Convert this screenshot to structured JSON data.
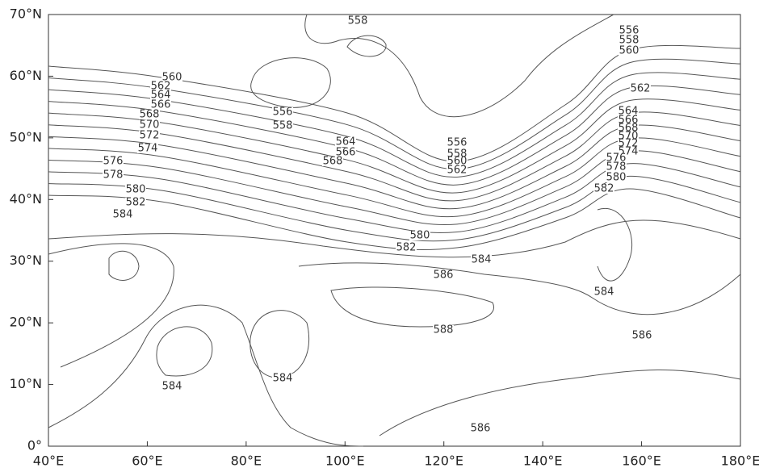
{
  "map": {
    "xticks": [
      "40°E",
      "60°E",
      "80°E",
      "100°E",
      "120°E",
      "140°E",
      "160°E",
      "180°E"
    ],
    "yticks": [
      "0°",
      "10°N",
      "20°N",
      "30°N",
      "40°N",
      "50°N",
      "60°N",
      "70°N"
    ],
    "contour_labels": [
      "558",
      "556",
      "558",
      "560",
      "562",
      "564",
      "566",
      "568",
      "570",
      "572",
      "574",
      "576",
      "578",
      "580",
      "582",
      "584",
      "564",
      "566",
      "568",
      "556",
      "558",
      "560",
      "562",
      "580",
      "582",
      "584",
      "586",
      "588",
      "584",
      "584",
      "584",
      "586",
      "586",
      "556",
      "558",
      "560",
      "562",
      "564",
      "566",
      "568",
      "570",
      "572",
      "574",
      "576",
      "578",
      "580",
      "582"
    ]
  }
}
